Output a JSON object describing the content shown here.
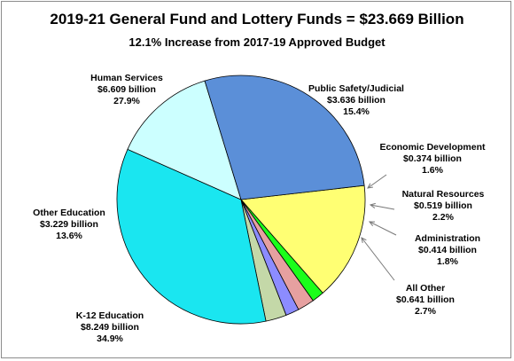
{
  "chart_data": {
    "type": "pie",
    "title": "2019-21 General Fund and Lottery Funds = $23.669 Billion",
    "subtitle": "12.1% Increase from 2017-19 Approved Budget",
    "slices": [
      {
        "name": "Public Safety/Judicial",
        "amount": "$3.636 billion",
        "value": 3.636,
        "percent": "15.4%",
        "color": "#ffff73"
      },
      {
        "name": "Economic Development",
        "amount": "$0.374 billion",
        "value": 0.374,
        "percent": "1.6%",
        "color": "#1aff1a"
      },
      {
        "name": "Natural Resources",
        "amount": "$0.519 billion",
        "value": 0.519,
        "percent": "2.2%",
        "color": "#e6a0a0"
      },
      {
        "name": "Administration",
        "amount": "$0.414 billion",
        "value": 0.414,
        "percent": "1.8%",
        "color": "#8c8cff"
      },
      {
        "name": "All Other",
        "amount": "$0.641 billion",
        "value": 0.641,
        "percent": "2.7%",
        "color": "#c4d8a8"
      },
      {
        "name": "K-12 Education",
        "amount": "$8.249 billion",
        "value": 8.249,
        "percent": "34.9%",
        "color": "#1ae6f0"
      },
      {
        "name": "Other Education",
        "amount": "$3.229 billion",
        "value": 3.229,
        "percent": "13.6%",
        "color": "#ccffff"
      },
      {
        "name": "Human Services",
        "amount": "$6.609 billion",
        "value": 6.609,
        "percent": "27.9%",
        "color": "#5b8fd8"
      }
    ]
  }
}
